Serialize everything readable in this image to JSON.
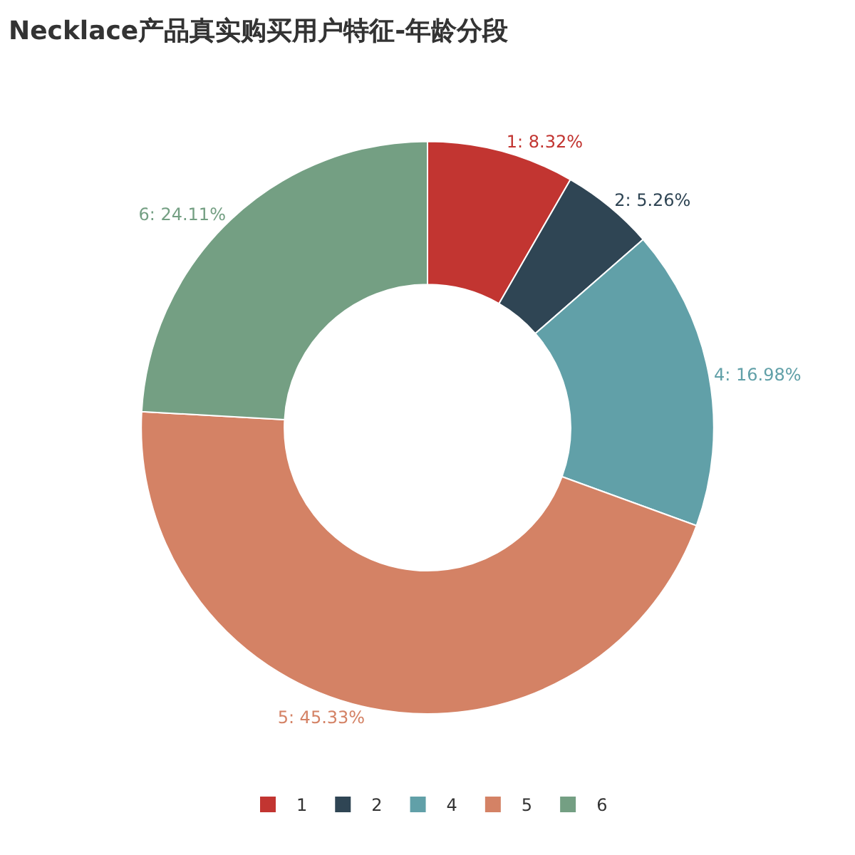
{
  "chart_data": {
    "type": "donut",
    "title": "Necklace产品真实购买用户特征-年龄分段",
    "categories": [
      "1",
      "2",
      "4",
      "5",
      "6"
    ],
    "values": [
      8.32,
      5.26,
      16.98,
      45.33,
      24.11
    ],
    "colors": [
      "#c23531",
      "#2f4554",
      "#61a0a8",
      "#d48265",
      "#749f83"
    ],
    "value_labels": [
      "1: 8.32%",
      "2: 5.26%",
      "4: 16.98%",
      "5: 45.33%",
      "6: 24.11%"
    ],
    "legend": "bottom"
  }
}
